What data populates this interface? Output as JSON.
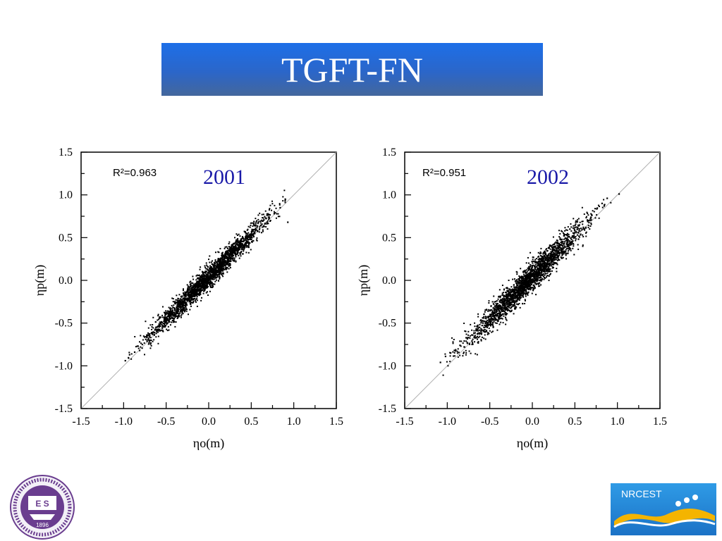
{
  "slide": {
    "title": "TGFT-FN"
  },
  "logos": {
    "left_seal_year": "1896",
    "left_seal_letters": "E S",
    "right_name": "NRCEST"
  },
  "colors": {
    "title_gradient_top": "#1d6fe8",
    "title_gradient_bottom": "#44679c",
    "year_label": "#1a1aa8",
    "points": "#000000"
  },
  "chart_data": [
    {
      "type": "scatter",
      "title": "2001",
      "annotation": "R²=0.963",
      "xlabel": "ηo(m)",
      "ylabel": "ηp(m)",
      "xlim": [
        -1.5,
        1.5
      ],
      "ylim": [
        -1.5,
        1.5
      ],
      "xticks": [
        "-1.5",
        "-1.0",
        "-0.5",
        "0.0",
        "0.5",
        "1.0",
        "1.5"
      ],
      "yticks": [
        "-1.5",
        "-1.0",
        "-0.5",
        "0.0",
        "0.5",
        "1.0",
        "1.5"
      ],
      "reference_line": "y = x",
      "grid": false,
      "series": [
        {
          "points": [
            [
              -0.98,
              -0.94
            ],
            [
              -0.93,
              -0.87
            ],
            [
              -0.87,
              -0.84
            ],
            [
              -0.83,
              -0.77
            ],
            [
              -0.78,
              -0.75
            ],
            [
              -0.74,
              -0.69
            ],
            [
              -0.7,
              -0.64
            ],
            [
              -0.66,
              -0.62
            ],
            [
              -0.62,
              -0.55
            ],
            [
              -0.59,
              -0.58
            ],
            [
              -0.56,
              -0.49
            ],
            [
              -0.52,
              -0.47
            ],
            [
              -0.49,
              -0.44
            ],
            [
              -0.46,
              -0.4
            ],
            [
              -0.43,
              -0.4
            ],
            [
              -0.4,
              -0.33
            ],
            [
              -0.37,
              -0.33
            ],
            [
              -0.34,
              -0.28
            ],
            [
              -0.31,
              -0.29
            ],
            [
              -0.28,
              -0.22
            ],
            [
              -0.25,
              -0.21
            ],
            [
              -0.22,
              -0.18
            ],
            [
              -0.19,
              -0.13
            ],
            [
              -0.16,
              -0.15
            ],
            [
              -0.13,
              -0.08
            ],
            [
              -0.1,
              -0.07
            ],
            [
              -0.07,
              -0.03
            ],
            [
              -0.04,
              0.02
            ],
            [
              -0.01,
              -0.01
            ],
            [
              0.02,
              0.07
            ],
            [
              0.05,
              0.07
            ],
            [
              0.08,
              0.1
            ],
            [
              0.11,
              0.16
            ],
            [
              0.14,
              0.13
            ],
            [
              0.17,
              0.21
            ],
            [
              0.2,
              0.22
            ],
            [
              0.23,
              0.25
            ],
            [
              0.26,
              0.31
            ],
            [
              0.29,
              0.29
            ],
            [
              0.32,
              0.36
            ],
            [
              0.35,
              0.36
            ],
            [
              0.38,
              0.41
            ],
            [
              0.41,
              0.46
            ],
            [
              0.44,
              0.43
            ],
            [
              0.48,
              0.52
            ],
            [
              0.52,
              0.53
            ],
            [
              0.56,
              0.59
            ],
            [
              0.61,
              0.64
            ],
            [
              0.66,
              0.66
            ],
            [
              0.71,
              0.74
            ],
            [
              0.77,
              0.78
            ],
            [
              0.84,
              0.85
            ],
            [
              0.9,
              0.95
            ],
            [
              0.93,
              0.68
            ]
          ]
        }
      ]
    },
    {
      "type": "scatter",
      "title": "2002",
      "annotation": "R²=0.951",
      "xlabel": "ηo(m)",
      "ylabel": "ηp(m)",
      "xlim": [
        -1.5,
        1.5
      ],
      "ylim": [
        -1.5,
        1.5
      ],
      "xticks": [
        "-1.5",
        "-1.0",
        "-0.5",
        "0.0",
        "0.5",
        "1.0",
        "1.5"
      ],
      "yticks": [
        "-1.5",
        "-1.0",
        "-0.5",
        "0.0",
        "0.5",
        "1.0",
        "1.5"
      ],
      "reference_line": "y = x",
      "grid": false,
      "series": [
        {
          "points": [
            [
              -1.08,
              -0.96
            ],
            [
              -1.02,
              -0.89
            ],
            [
              -0.96,
              -0.85
            ],
            [
              -0.9,
              -0.82
            ],
            [
              -0.85,
              -0.76
            ],
            [
              -0.8,
              -0.71
            ],
            [
              -0.75,
              -0.67
            ],
            [
              -0.7,
              -0.64
            ],
            [
              -0.66,
              -0.57
            ],
            [
              -0.62,
              -0.55
            ],
            [
              -0.58,
              -0.5
            ],
            [
              -0.54,
              -0.49
            ],
            [
              -0.5,
              -0.42
            ],
            [
              -0.46,
              -0.4
            ],
            [
              -0.42,
              -0.35
            ],
            [
              -0.38,
              -0.33
            ],
            [
              -0.34,
              -0.27
            ],
            [
              -0.3,
              -0.26
            ],
            [
              -0.26,
              -0.19
            ],
            [
              -0.22,
              -0.18
            ],
            [
              -0.18,
              -0.12
            ],
            [
              -0.14,
              -0.1
            ],
            [
              -0.1,
              -0.04
            ],
            [
              -0.06,
              -0.03
            ],
            [
              -0.02,
              0.03
            ],
            [
              0.02,
              0.05
            ],
            [
              0.06,
              0.1
            ],
            [
              0.1,
              0.12
            ],
            [
              0.14,
              0.17
            ],
            [
              0.18,
              0.19
            ],
            [
              0.22,
              0.25
            ],
            [
              0.26,
              0.26
            ],
            [
              0.3,
              0.33
            ],
            [
              0.34,
              0.34
            ],
            [
              0.38,
              0.4
            ],
            [
              0.42,
              0.42
            ],
            [
              0.46,
              0.48
            ],
            [
              0.5,
              0.5
            ],
            [
              0.55,
              0.58
            ],
            [
              0.6,
              0.62
            ],
            [
              0.65,
              0.7
            ],
            [
              0.7,
              0.76
            ],
            [
              0.76,
              0.84
            ],
            [
              0.82,
              0.9
            ],
            [
              0.88,
              0.96
            ],
            [
              1.02,
              1.01
            ]
          ]
        }
      ]
    }
  ]
}
